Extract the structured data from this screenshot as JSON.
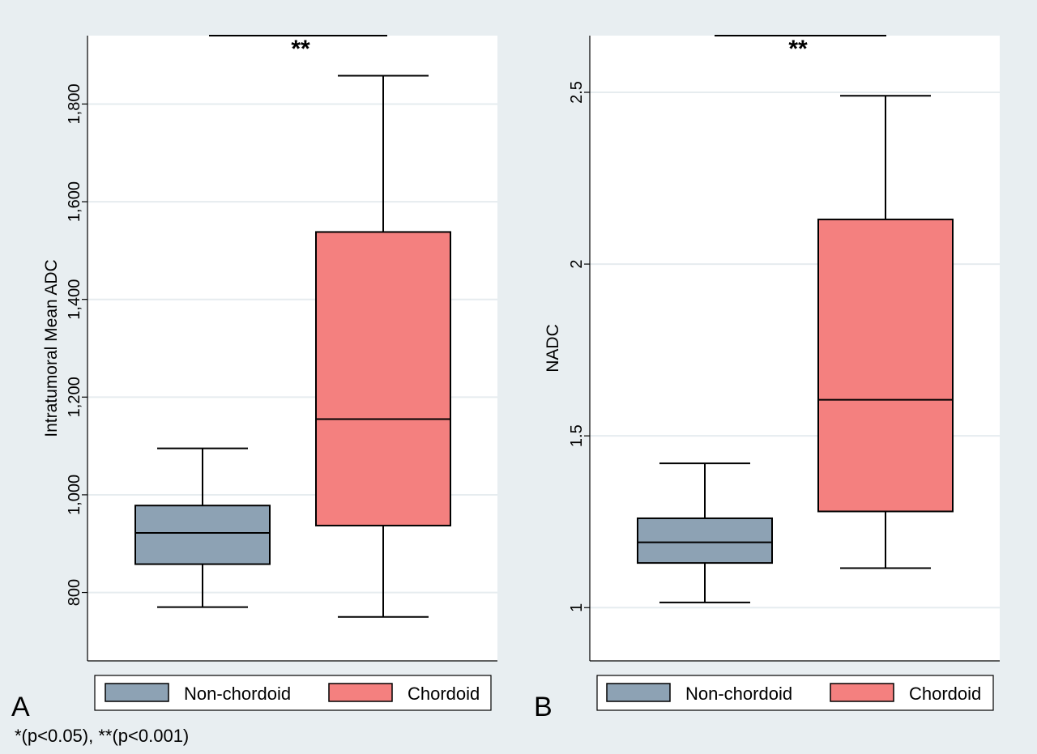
{
  "chart_data": [
    {
      "type": "box",
      "panel_label": "A",
      "ylabel": "Intratumoral Mean ADC",
      "yticks": [
        800,
        1000,
        1200,
        1400,
        1600,
        1800
      ],
      "ytick_labels": [
        "800",
        "1,000",
        "1,200",
        "1,400",
        "1,600",
        "1,800"
      ],
      "ylim": [
        660,
        1940
      ],
      "grid": true,
      "categories": [
        "Non-chordoid",
        "Chordoid"
      ],
      "boxes": [
        {
          "name": "Non-chordoid",
          "whisker_low": 770,
          "q1": 858,
          "median": 922,
          "q3": 978,
          "whisker_high": 1095
        },
        {
          "name": "Chordoid",
          "whisker_low": 750,
          "q1": 937,
          "median": 1155,
          "q3": 1538,
          "whisker_high": 1858
        }
      ],
      "significance": {
        "label": "**",
        "from": "Non-chordoid",
        "to": "Chordoid"
      },
      "legend": {
        "position": "bottom",
        "entries": [
          "Non-chordoid",
          "Chordoid"
        ]
      }
    },
    {
      "type": "box",
      "panel_label": "B",
      "ylabel": "NADC",
      "yticks": [
        1,
        1.5,
        2,
        2.5
      ],
      "ytick_labels": [
        "1",
        "1.5",
        "2",
        "2.5"
      ],
      "ylim": [
        0.845,
        2.665
      ],
      "grid": true,
      "categories": [
        "Non-chordoid",
        "Chordoid"
      ],
      "boxes": [
        {
          "name": "Non-chordoid",
          "whisker_low": 1.015,
          "q1": 1.13,
          "median": 1.19,
          "q3": 1.26,
          "whisker_high": 1.42
        },
        {
          "name": "Chordoid",
          "whisker_low": 1.115,
          "q1": 1.28,
          "median": 1.605,
          "q3": 2.13,
          "whisker_high": 2.49
        }
      ],
      "significance": {
        "label": "**",
        "from": "Non-chordoid",
        "to": "Chordoid"
      },
      "legend": {
        "position": "bottom",
        "entries": [
          "Non-chordoid",
          "Chordoid"
        ]
      }
    }
  ],
  "footnote": "*(p<0.05), **(p<0.001)",
  "colors": {
    "background": "#e8eef1",
    "plot_area": "#ffffff",
    "gridline": "#e6ecef",
    "Non-chordoid": "#8da2b4",
    "Chordoid": "#f4807f",
    "stroke": "#000000"
  }
}
